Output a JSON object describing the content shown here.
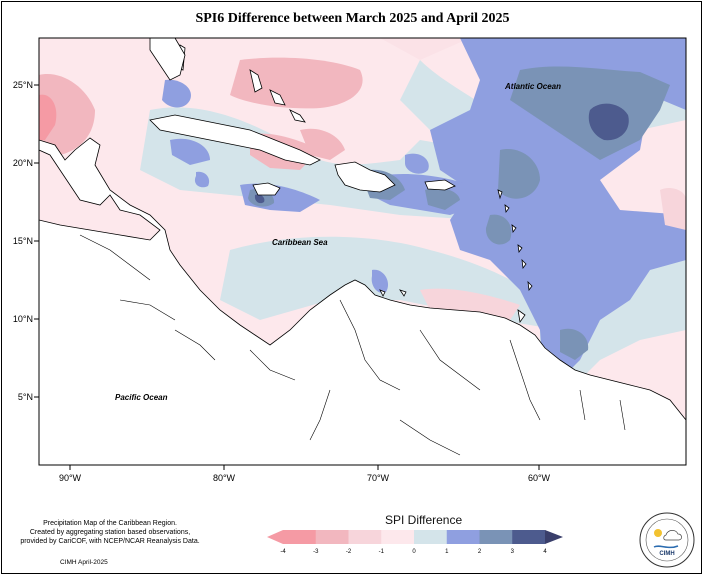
{
  "title": "SPI6 Difference between March 2025 and April 2025",
  "labels": {
    "atlantic": "Atlantic Ocean",
    "caribbean": "Caribbean Sea",
    "pacific": "Pacific Ocean"
  },
  "lat_ticks": [
    "25°N",
    "20°N",
    "15°N",
    "10°N",
    "5°N"
  ],
  "lon_ticks": [
    "90°W",
    "80°W",
    "70°W",
    "60°W"
  ],
  "legend": {
    "title": "SPI Difference",
    "ticks": [
      "-4",
      "-3",
      "-2",
      "-1",
      "0",
      "1",
      "2",
      "3",
      "4"
    ],
    "colors": [
      "#f59aa4",
      "#f2b7bf",
      "#f7d5db",
      "#fde8ec",
      "#d4e4ea",
      "#8f9fe0",
      "#7a93b6",
      "#4d5b8e"
    ]
  },
  "footnote": {
    "line1": "Precipitation Map of the Caribbean Region.",
    "line2": "Created by aggregating station based observations,",
    "line3": "provided by CariCOF, with NCEP/NCAR Reanalysis Data."
  },
  "credit": "CIMH April-2025",
  "logo_text": "CIMH"
}
